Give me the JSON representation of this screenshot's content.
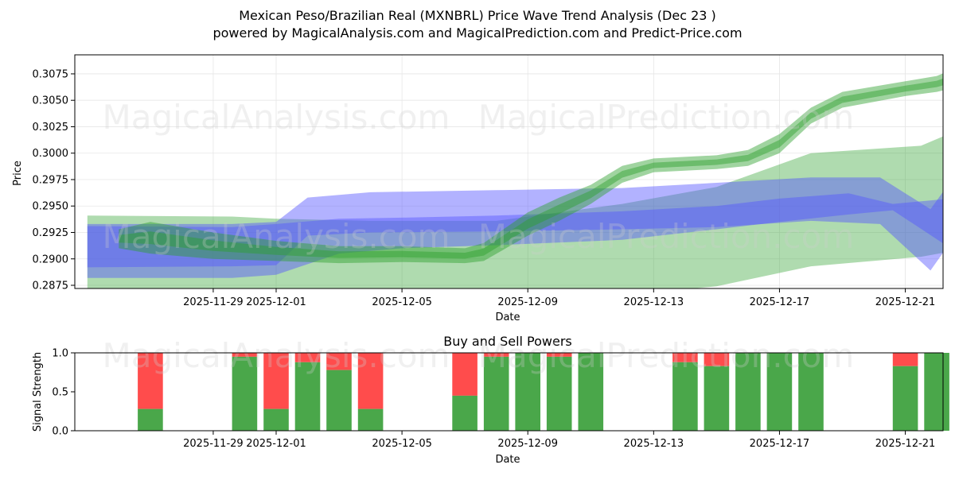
{
  "header": {
    "title_line1": "Mexican Peso/Brazilian Real (MXNBRL) Price Wave Trend Analysis (Dec 23 )",
    "title_line2": "powered by MagicalAnalysis.com and MagicalPrediction.com and Predict-Price.com"
  },
  "watermarks": {
    "left": "MagicalAnalysis.com",
    "right": "MagicalPrediction.com"
  },
  "colors": {
    "green_band": "#2ca02c",
    "blue_band": "#5555ff",
    "buy": "#4aa74a",
    "sell": "#ff4c4c",
    "grid": "#e6e6e6"
  },
  "chart_data": [
    {
      "type": "area",
      "name": "price-wave-trend",
      "xlabel": "Date",
      "ylabel": "Price",
      "xlim": [
        -2.4,
        25.2
      ],
      "ylim": [
        0.2872,
        0.3093
      ],
      "x_origin_date": "2025-11-27",
      "x_ticks": [
        {
          "x": 2,
          "label": "2025-11-29"
        },
        {
          "x": 4,
          "label": "2025-12-01"
        },
        {
          "x": 8,
          "label": "2025-12-05"
        },
        {
          "x": 12,
          "label": "2025-12-09"
        },
        {
          "x": 16,
          "label": "2025-12-13"
        },
        {
          "x": 20,
          "label": "2025-12-17"
        },
        {
          "x": 24,
          "label": "2025-12-21"
        }
      ],
      "y_ticks": [
        {
          "y": 0.2875,
          "label": "0.2875"
        },
        {
          "y": 0.29,
          "label": "0.2900"
        },
        {
          "y": 0.2925,
          "label": "0.2925"
        },
        {
          "y": 0.295,
          "label": "0.2950"
        },
        {
          "y": 0.2975,
          "label": "0.2975"
        },
        {
          "y": 0.3,
          "label": "0.3000"
        },
        {
          "y": 0.3025,
          "label": "0.3025"
        },
        {
          "y": 0.305,
          "label": "0.3050"
        },
        {
          "y": 0.3075,
          "label": "0.3075"
        }
      ],
      "grid": true,
      "bands": [
        {
          "name": "green-long-band",
          "color": "#2ca02c",
          "opacity": 0.38,
          "x": [
            -2,
            2.6,
            4,
            7,
            11,
            15,
            18,
            21,
            24.5,
            26,
            26.4
          ],
          "upper": [
            0.2941,
            0.294,
            0.2938,
            0.2936,
            0.2936,
            0.2952,
            0.2968,
            0.3,
            0.3007,
            0.3026,
            0.2978
          ],
          "lower": [
            0.287,
            0.2868,
            0.2867,
            0.2866,
            0.2866,
            0.2866,
            0.2874,
            0.2893,
            0.2902,
            0.291,
            0.2908
          ]
        },
        {
          "name": "blue-low-band",
          "color": "#5555ff",
          "opacity": 0.45,
          "x": [
            -2,
            2.6,
            4,
            6,
            8,
            11,
            15,
            18,
            20,
            22.2,
            23.6,
            25.8,
            26.4
          ],
          "upper": [
            0.2931,
            0.293,
            0.2933,
            0.2938,
            0.2939,
            0.2941,
            0.2945,
            0.295,
            0.2957,
            0.2962,
            0.2952,
            0.2958,
            0.2935
          ],
          "lower": [
            0.2882,
            0.2882,
            0.2885,
            0.2905,
            0.291,
            0.2913,
            0.2918,
            0.2928,
            0.2935,
            0.2942,
            0.2946,
            0.2903,
            0.2908
          ]
        },
        {
          "name": "blue-high-band",
          "color": "#5555ff",
          "opacity": 0.45,
          "x": [
            -2,
            2.6,
            4,
            5,
            7,
            11,
            15,
            18,
            21,
            23.2,
            24.8,
            25.7,
            27
          ],
          "upper": [
            0.2933,
            0.2933,
            0.2935,
            0.2958,
            0.2963,
            0.2965,
            0.2967,
            0.2972,
            0.2977,
            0.2977,
            0.2947,
            0.2984,
            0.2953
          ],
          "lower": [
            0.2892,
            0.2893,
            0.2894,
            0.2922,
            0.2925,
            0.2926,
            0.2928,
            0.293,
            0.2936,
            0.2933,
            0.2889,
            0.2927,
            0.2944
          ]
        },
        {
          "name": "green-trend-band",
          "color": "#2ca02c",
          "opacity": 0.45,
          "x": [
            -1,
            0,
            2,
            4,
            6,
            8,
            10,
            10.6,
            12,
            13,
            14,
            15,
            16,
            18,
            19,
            20,
            21,
            22,
            24,
            25,
            26
          ],
          "upper": [
            0.2928,
            0.2935,
            0.2925,
            0.2917,
            0.2912,
            0.2912,
            0.291,
            0.2915,
            0.2944,
            0.2958,
            0.297,
            0.2988,
            0.2995,
            0.2998,
            0.3003,
            0.3018,
            0.3043,
            0.3058,
            0.3068,
            0.3073,
            0.3085
          ],
          "lower": [
            0.291,
            0.2905,
            0.29,
            0.2898,
            0.2896,
            0.2897,
            0.2896,
            0.2898,
            0.2922,
            0.2936,
            0.2952,
            0.2972,
            0.2982,
            0.2985,
            0.2988,
            0.3,
            0.3028,
            0.3043,
            0.3054,
            0.3058,
            0.3065
          ]
        }
      ]
    },
    {
      "type": "bar",
      "name": "buy-and-sell-powers",
      "title": "Buy and Sell Powers",
      "xlabel": "Date",
      "ylabel": "Signal Strength",
      "xlim": [
        -2.4,
        25.2
      ],
      "ylim": [
        0,
        1
      ],
      "x_ticks": [
        {
          "x": 2,
          "label": "2025-11-29"
        },
        {
          "x": 4,
          "label": "2025-12-01"
        },
        {
          "x": 8,
          "label": "2025-12-05"
        },
        {
          "x": 12,
          "label": "2025-12-09"
        },
        {
          "x": 16,
          "label": "2025-12-13"
        },
        {
          "x": 20,
          "label": "2025-12-17"
        },
        {
          "x": 24,
          "label": "2025-12-21"
        }
      ],
      "y_ticks": [
        {
          "y": 0,
          "label": "0.0"
        },
        {
          "y": 0.5,
          "label": "0.5"
        },
        {
          "y": 1,
          "label": "1.0"
        }
      ],
      "series": [
        {
          "name": "Buy",
          "color": "#4aa74a"
        },
        {
          "name": "Sell",
          "color": "#ff4c4c"
        }
      ],
      "bars": [
        {
          "x": 0,
          "buy": 0.28
        },
        {
          "x": 3,
          "buy": 0.95
        },
        {
          "x": 4,
          "buy": 0.28
        },
        {
          "x": 5,
          "buy": 0.88
        },
        {
          "x": 6,
          "buy": 0.78
        },
        {
          "x": 7,
          "buy": 0.28
        },
        {
          "x": 10,
          "buy": 0.45
        },
        {
          "x": 11,
          "buy": 0.95
        },
        {
          "x": 12,
          "buy": 1.0
        },
        {
          "x": 13,
          "buy": 0.95
        },
        {
          "x": 14,
          "buy": 1.0
        },
        {
          "x": 17,
          "buy": 0.88
        },
        {
          "x": 18,
          "buy": 0.83
        },
        {
          "x": 19,
          "buy": 1.0
        },
        {
          "x": 20,
          "buy": 1.0
        },
        {
          "x": 21,
          "buy": 1.0
        },
        {
          "x": 24,
          "buy": 0.83
        },
        {
          "x": 25,
          "buy": 1.0
        }
      ]
    }
  ]
}
